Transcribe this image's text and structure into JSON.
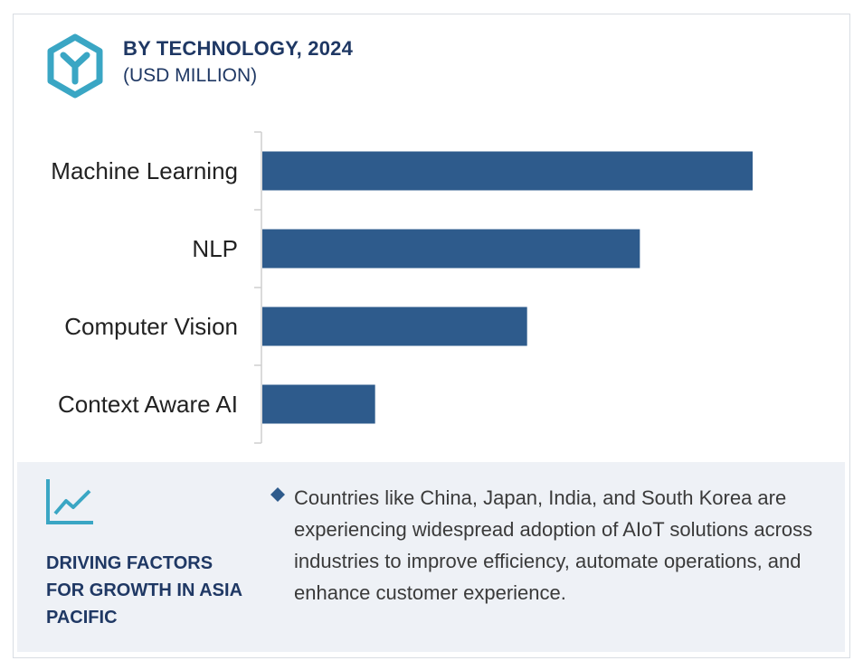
{
  "header": {
    "title": "BY TECHNOLOGY, 2024",
    "subtitle": "(USD MILLION)",
    "logo_icon": "y-hexagon-icon"
  },
  "colors": {
    "bar": "#2e5b8c",
    "title": "#1f3864",
    "accent": "#3aa6c4",
    "panel_bg": "#eef1f6"
  },
  "chart_data": {
    "type": "bar",
    "orientation": "horizontal",
    "title": "BY TECHNOLOGY, 2024",
    "subtitle": "(USD MILLION)",
    "categories": [
      "Machine Learning",
      "NLP",
      "Computer Vision",
      "Context Aware AI"
    ],
    "values": [
      100,
      77,
      54,
      23
    ],
    "grid": false,
    "legend": "none"
  },
  "factors": {
    "icon": "trend-line-icon",
    "title": "DRIVING FACTORS FOR GROWTH IN ASIA PACIFIC",
    "bullet_icon": "diamond-bullet-icon",
    "text": "Countries like China, Japan, India, and South Korea are experiencing widespread adoption of AIoT solutions across industries to improve efficiency, automate operations, and enhance customer experience."
  }
}
